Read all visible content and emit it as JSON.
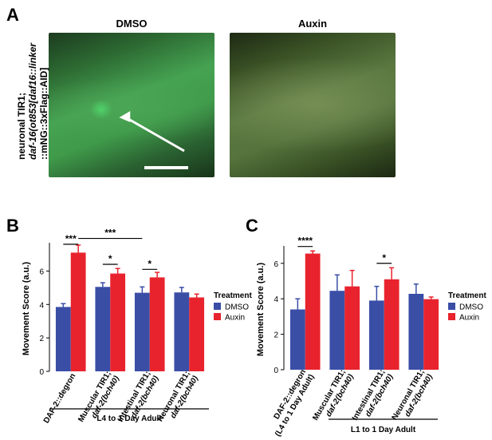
{
  "panel_a": {
    "letter": "A",
    "image_titles": [
      "DMSO",
      "Auxin"
    ],
    "strain_label_line1": "neuronal TIR1;",
    "strain_label_line2": "daf-16(ot853[daf16::linker",
    "strain_label_line3": "::mNG::3xFlag::AID]"
  },
  "chart_data": [
    {
      "type": "bar",
      "panel": "B",
      "categories": [
        "DAF-2::degron",
        "Muscular TIR1; daf-2(bch40)",
        "Intestinal TIR1; daf-2(bch40)",
        "Neuronal TIR1; daf-2(bch40)"
      ],
      "tick_labels": [
        [
          "DAF-2::degron"
        ],
        [
          "Muscular TIR1;",
          "daf-2(bch40)"
        ],
        [
          "Intestinal TIR1;",
          "daf-2(bch40)"
        ],
        [
          "Neuronal TIR1;",
          "daf-2(bch40)"
        ]
      ],
      "series": [
        {
          "name": "DMSO",
          "color": "#3a4ea6",
          "values": [
            3.85,
            5.05,
            4.7,
            4.72
          ],
          "errors": [
            0.2,
            0.25,
            0.35,
            0.3
          ]
        },
        {
          "name": "Auxin",
          "color": "#e8232d",
          "values": [
            7.1,
            5.85,
            5.62,
            4.42
          ],
          "errors": [
            0.45,
            0.3,
            0.3,
            0.2
          ]
        }
      ],
      "ylabel": "Movement Score (a.u.)",
      "ylim": [
        0,
        7.5
      ],
      "yticks": [
        0,
        2,
        4,
        6
      ],
      "group_label": "L4 to 1 Day Adult",
      "legend_title": "Treatment",
      "legend_position": "right",
      "significance": [
        {
          "label": "***",
          "type": "within",
          "group": 0,
          "level": 7.6
        },
        {
          "label": "***",
          "type": "across",
          "from_group": 0,
          "to_group": 2,
          "level": 7.95
        },
        {
          "label": "*",
          "type": "within",
          "group": 1,
          "level": 6.4
        },
        {
          "label": "*",
          "type": "within",
          "group": 2,
          "level": 6.1
        }
      ]
    },
    {
      "type": "bar",
      "panel": "C",
      "categories": [
        "DAF-2::degron (L4 to 1 Day Adult)",
        "Muscular TIR1; daf-2(bch40)",
        "Intestinal TIR1; daf-2(bch40)",
        "Neuronal TIR1; daf-2(bch40)"
      ],
      "tick_labels": [
        [
          "DAF-2::degron",
          "(L4 to 1 Day Adult)"
        ],
        [
          "Muscular TIR1;",
          "daf-2(bch40)"
        ],
        [
          "Intestinal TIR1;",
          "daf-2(bch40)"
        ],
        [
          "Neuronal TIR1;",
          "daf-2(bch40)"
        ]
      ],
      "series": [
        {
          "name": "DMSO",
          "color": "#3a4ea6",
          "values": [
            3.4,
            4.45,
            3.9,
            4.28
          ],
          "errors": [
            0.6,
            0.9,
            0.8,
            0.55
          ]
        },
        {
          "name": "Auxin",
          "color": "#e8232d",
          "values": [
            6.55,
            4.7,
            5.1,
            3.98
          ],
          "errors": [
            0.15,
            0.9,
            0.65,
            0.12
          ]
        }
      ],
      "ylabel": "Movement Score (a.u.)",
      "ylim": [
        0,
        6.8
      ],
      "yticks": [
        0,
        2,
        4,
        6
      ],
      "group_label": "L1 to 1 Day Adult",
      "legend_title": "Treatment",
      "legend_position": "right",
      "significance": [
        {
          "label": "****",
          "type": "within",
          "group": 0,
          "level": 6.95
        },
        {
          "label": "*",
          "type": "within",
          "group": 2,
          "level": 6.0
        }
      ]
    }
  ]
}
